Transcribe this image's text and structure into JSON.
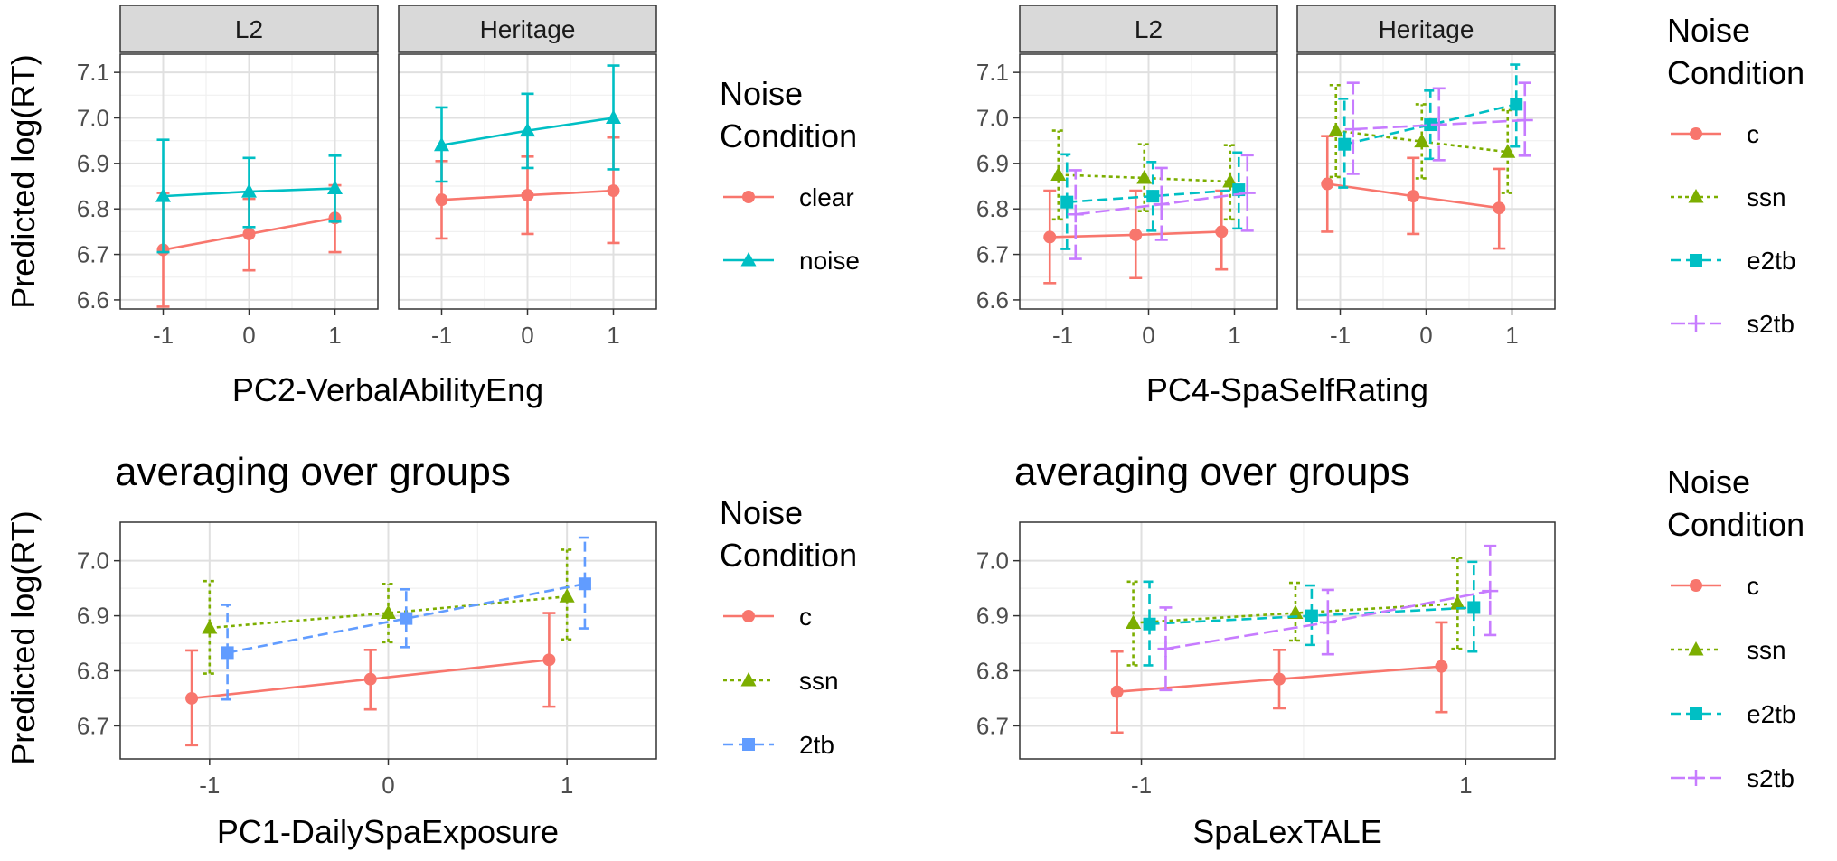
{
  "colors": {
    "clear": "#F8766D",
    "noise": "#00BFC4",
    "c": "#F8766D",
    "ssn": "#7CAE00",
    "e2tb": "#00BFC4",
    "s2tb": "#C77CFF",
    "2tb": "#619CFF"
  },
  "chart_data": [
    {
      "id": "p1",
      "type": "line",
      "facets": [
        "L2",
        "Heritage"
      ],
      "xlabel": "PC2-VerbalAbilityEng",
      "ylabel": "Predicted log(RT)",
      "xlim": [
        -1.5,
        1.5
      ],
      "ylim": [
        6.58,
        7.14
      ],
      "xticks": [
        -1,
        0,
        1
      ],
      "xtick_labels": [
        "-1",
        "0",
        "1"
      ],
      "yticks": [
        6.6,
        6.7,
        6.8,
        6.9,
        7.0,
        7.1
      ],
      "ytick_labels": [
        "6.6",
        "6.7",
        "6.8",
        "6.9",
        "7.0",
        "7.1"
      ],
      "legend": {
        "title": [
          "Noise",
          "Condition"
        ],
        "entries": [
          "clear",
          "noise"
        ]
      },
      "series": [
        {
          "name": "clear",
          "shape": "circle",
          "dash": "",
          "x": [
            -1,
            0,
            1
          ],
          "facet_values": [
            {
              "y": [
                6.71,
                6.745,
                6.78
              ],
              "lo": [
                6.585,
                6.665,
                6.705
              ],
              "hi": [
                6.835,
                6.822,
                6.852
              ]
            },
            {
              "y": [
                6.82,
                6.83,
                6.84
              ],
              "lo": [
                6.735,
                6.745,
                6.725
              ],
              "hi": [
                6.905,
                6.915,
                6.957
              ]
            }
          ]
        },
        {
          "name": "noise",
          "shape": "triangle",
          "dash": "",
          "x": [
            -1,
            0,
            1
          ],
          "facet_values": [
            {
              "y": [
                6.828,
                6.838,
                6.845
              ],
              "lo": [
                6.705,
                6.76,
                6.772
              ],
              "hi": [
                6.952,
                6.912,
                6.917
              ]
            },
            {
              "y": [
                6.94,
                6.972,
                7.0
              ],
              "lo": [
                6.86,
                6.89,
                6.887
              ],
              "hi": [
                7.023,
                7.053,
                7.115
              ]
            }
          ]
        }
      ]
    },
    {
      "id": "p2",
      "type": "line",
      "facets": [
        "L2",
        "Heritage"
      ],
      "xlabel": "PC4-SpaSelfRating",
      "ylabel": "",
      "xlim": [
        -1.5,
        1.5
      ],
      "ylim": [
        6.58,
        7.14
      ],
      "xticks": [
        -1,
        0,
        1
      ],
      "xtick_labels": [
        "-1",
        "0",
        "1"
      ],
      "yticks": [
        6.6,
        6.7,
        6.8,
        6.9,
        7.0,
        7.1
      ],
      "ytick_labels": [
        "6.6",
        "6.7",
        "6.8",
        "6.9",
        "7.0",
        "7.1"
      ],
      "legend": {
        "title": [
          "Noise",
          "Condition"
        ],
        "entries": [
          "c",
          "ssn",
          "e2tb",
          "s2tb"
        ]
      },
      "series": [
        {
          "name": "c",
          "shape": "circle",
          "dash": "",
          "x": [
            -1.15,
            -0.15,
            0.85
          ],
          "facet_values": [
            {
              "y": [
                6.738,
                6.743,
                6.75
              ],
              "lo": [
                6.637,
                6.648,
                6.667
              ],
              "hi": [
                6.84,
                6.84,
                6.84
              ]
            },
            {
              "y": [
                6.855,
                6.828,
                6.802
              ],
              "lo": [
                6.75,
                6.745,
                6.713
              ],
              "hi": [
                6.96,
                6.912,
                6.888
              ]
            }
          ]
        },
        {
          "name": "ssn",
          "shape": "triangle",
          "dash": "4,4",
          "x": [
            -1.05,
            -0.05,
            0.95
          ],
          "facet_values": [
            {
              "y": [
                6.875,
                6.868,
                6.86
              ],
              "lo": [
                6.777,
                6.795,
                6.777
              ],
              "hi": [
                6.972,
                6.942,
                6.94
              ]
            },
            {
              "y": [
                6.972,
                6.948,
                6.925
              ],
              "lo": [
                6.87,
                6.867,
                6.835
              ],
              "hi": [
                7.072,
                7.03,
                7.017
              ]
            }
          ]
        },
        {
          "name": "e2tb",
          "shape": "square",
          "dash": "11,6",
          "x": [
            -0.95,
            0.05,
            1.05
          ],
          "facet_values": [
            {
              "y": [
                6.815,
                6.828,
                6.842
              ],
              "lo": [
                6.712,
                6.752,
                6.757
              ],
              "hi": [
                6.92,
                6.903,
                6.924
              ]
            },
            {
              "y": [
                6.942,
                6.985,
                7.03
              ],
              "lo": [
                6.847,
                6.91,
                6.937
              ],
              "hi": [
                7.042,
                7.06,
                7.117
              ]
            }
          ]
        },
        {
          "name": "s2tb",
          "shape": "plus",
          "dash": "16,6",
          "x": [
            -0.85,
            0.15,
            1.15
          ],
          "facet_values": [
            {
              "y": [
                6.788,
                6.81,
                6.835
              ],
              "lo": [
                6.69,
                6.732,
                6.752
              ],
              "hi": [
                6.885,
                6.89,
                6.918
              ]
            },
            {
              "y": [
                6.975,
                6.985,
                6.995
              ],
              "lo": [
                6.877,
                6.907,
                6.917
              ],
              "hi": [
                7.077,
                7.065,
                7.077
              ]
            }
          ]
        }
      ]
    },
    {
      "id": "p3",
      "type": "line",
      "title": "averaging over groups",
      "xlabel": "PC1-DailySpaExposure",
      "ylabel": "Predicted log(RT)",
      "xlim": [
        -1.5,
        1.5
      ],
      "ylim": [
        6.64,
        7.07
      ],
      "xticks": [
        -1,
        0,
        1
      ],
      "xtick_labels": [
        "-1",
        "0",
        "1"
      ],
      "yticks": [
        6.7,
        6.8,
        6.9,
        7.0
      ],
      "ytick_labels": [
        "6.7",
        "6.8",
        "6.9",
        "7.0"
      ],
      "legend": {
        "title": [
          "Noise",
          "Condition"
        ],
        "entries": [
          "c",
          "ssn",
          "2tb"
        ]
      },
      "series": [
        {
          "name": "c",
          "shape": "circle",
          "dash": "",
          "x": [
            -1.1,
            -0.1,
            0.9
          ],
          "y": [
            6.75,
            6.785,
            6.82
          ],
          "lo": [
            6.665,
            6.73,
            6.735
          ],
          "hi": [
            6.837,
            6.838,
            6.905
          ]
        },
        {
          "name": "ssn",
          "shape": "triangle",
          "dash": "4,4",
          "x": [
            -1.0,
            0.0,
            1.0
          ],
          "y": [
            6.878,
            6.905,
            6.935
          ],
          "lo": [
            6.795,
            6.852,
            6.857
          ],
          "hi": [
            6.963,
            6.958,
            7.02
          ]
        },
        {
          "name": "2tb",
          "shape": "square",
          "dash": "11,6",
          "x": [
            -0.9,
            0.1,
            1.1
          ],
          "y": [
            6.833,
            6.895,
            6.958
          ],
          "lo": [
            6.748,
            6.843,
            6.877
          ],
          "hi": [
            6.92,
            6.948,
            7.042
          ]
        }
      ]
    },
    {
      "id": "p4",
      "type": "line",
      "title": "averaging over groups",
      "xlabel": "SpaLexTALE",
      "ylabel": "",
      "xlim": [
        -1.75,
        1.55
      ],
      "ylim": [
        6.64,
        7.07
      ],
      "xticks": [
        -1,
        1
      ],
      "xtick_labels": [
        "-1",
        "1"
      ],
      "yticks": [
        6.7,
        6.8,
        6.9,
        7.0
      ],
      "ytick_labels": [
        "6.7",
        "6.8",
        "6.9",
        "7.0"
      ],
      "legend": {
        "title": [
          "Noise",
          "Condition"
        ],
        "entries": [
          "c",
          "ssn",
          "e2tb",
          "s2tb"
        ]
      },
      "series": [
        {
          "name": "c",
          "shape": "circle",
          "dash": "",
          "x": [
            -1.15,
            -0.15,
            0.85
          ],
          "y": [
            6.762,
            6.785,
            6.808
          ],
          "lo": [
            6.688,
            6.732,
            6.725
          ],
          "hi": [
            6.835,
            6.838,
            6.888
          ]
        },
        {
          "name": "ssn",
          "shape": "triangle",
          "dash": "4,4",
          "x": [
            -1.05,
            -0.05,
            0.95
          ],
          "y": [
            6.887,
            6.905,
            6.922
          ],
          "lo": [
            6.81,
            6.855,
            6.84
          ],
          "hi": [
            6.962,
            6.96,
            7.005
          ]
        },
        {
          "name": "e2tb",
          "shape": "square",
          "dash": "11,6",
          "x": [
            -0.95,
            0.05,
            1.05
          ],
          "y": [
            6.885,
            6.9,
            6.915
          ],
          "lo": [
            6.81,
            6.847,
            6.835
          ],
          "hi": [
            6.962,
            6.955,
            6.998
          ]
        },
        {
          "name": "s2tb",
          "shape": "plus",
          "dash": "16,6",
          "x": [
            -0.85,
            0.15,
            1.15
          ],
          "y": [
            6.84,
            6.888,
            6.945
          ],
          "lo": [
            6.765,
            6.83,
            6.865
          ],
          "hi": [
            6.915,
            6.947,
            7.027
          ]
        }
      ]
    }
  ]
}
